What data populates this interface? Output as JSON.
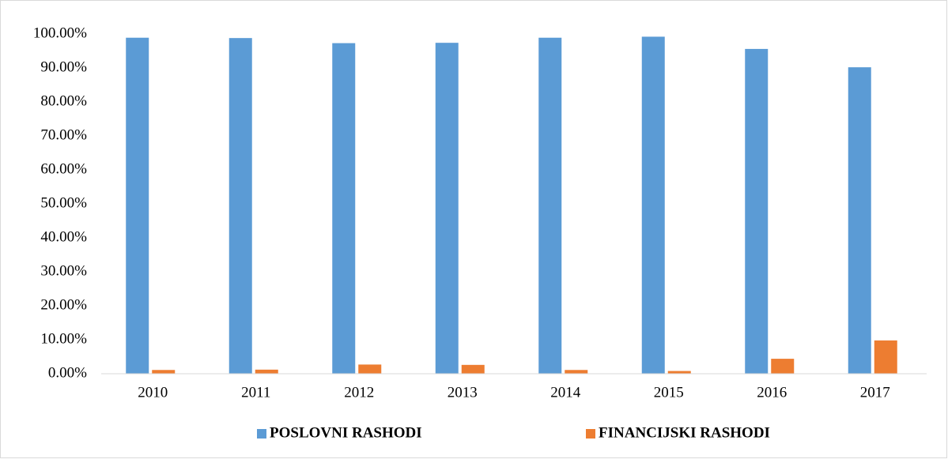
{
  "chart_data": {
    "type": "bar",
    "categories": [
      "2010",
      "2011",
      "2012",
      "2013",
      "2014",
      "2015",
      "2016",
      "2017"
    ],
    "series": [
      {
        "name": "POSLOVNI RASHODI",
        "color": "#5b9bd5",
        "values": [
          98.9,
          98.8,
          97.3,
          97.4,
          98.9,
          99.2,
          95.6,
          90.2
        ]
      },
      {
        "name": "FINANCIJSKI RASHODI",
        "color": "#ed7d31",
        "values": [
          1.1,
          1.2,
          2.7,
          2.6,
          1.1,
          0.8,
          4.4,
          9.8
        ]
      }
    ],
    "ylim": [
      0,
      100
    ],
    "yticks": [
      {
        "value": 0,
        "label": "0.00%"
      },
      {
        "value": 10,
        "label": "10.00%"
      },
      {
        "value": 20,
        "label": "20.00%"
      },
      {
        "value": 30,
        "label": "30.00%"
      },
      {
        "value": 40,
        "label": "40.00%"
      },
      {
        "value": 50,
        "label": "50.00%"
      },
      {
        "value": 60,
        "label": "60.00%"
      },
      {
        "value": 70,
        "label": "70.00%"
      },
      {
        "value": 80,
        "label": "80.00%"
      },
      {
        "value": 90,
        "label": "90.00%"
      },
      {
        "value": 100,
        "label": "100.00%"
      }
    ],
    "grid": false,
    "legend": "bottom"
  }
}
